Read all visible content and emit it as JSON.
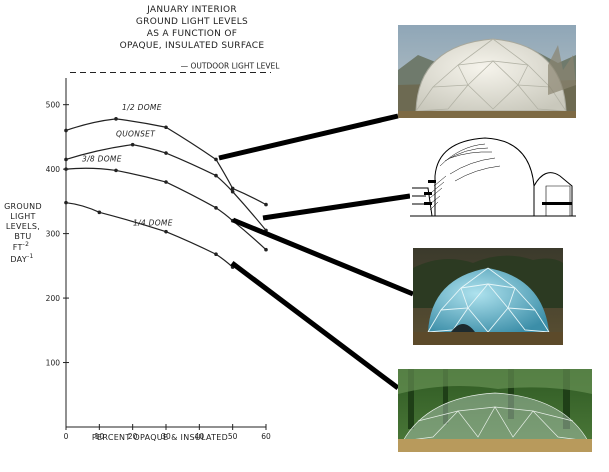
{
  "chart_data": {
    "type": "line",
    "title_lines": [
      "JANUARY INTERIOR",
      "GROUND LIGHT LEVELS",
      "AS A FUNCTION OF",
      "OPAQUE, INSULATED SURFACE"
    ],
    "xlabel": "PERCENT OPAQUE & INSULATED",
    "ylabel_lines": [
      "GROUND",
      "LIGHT",
      "LEVELS,",
      "BTU",
      "FT",
      "DAY"
    ],
    "ylabel_exponents": [
      "-2",
      "-1"
    ],
    "xlim": [
      0,
      60
    ],
    "ylim": [
      0,
      560
    ],
    "xticks": [
      0,
      10,
      20,
      30,
      40,
      50,
      60
    ],
    "yticks": [
      100,
      200,
      300,
      400,
      500
    ],
    "reference_line": {
      "label": "OUTDOOR LIGHT LEVEL",
      "value": 550
    },
    "series": [
      {
        "name": "1/2 DOME",
        "x": [
          0,
          15,
          30,
          45,
          50,
          60
        ],
        "y": [
          460,
          478,
          465,
          415,
          370,
          345
        ]
      },
      {
        "name": "QUONSET",
        "x": [
          0,
          20,
          30,
          45,
          50,
          60
        ],
        "y": [
          415,
          438,
          425,
          390,
          365,
          305
        ]
      },
      {
        "name": "3/8 DOME",
        "x": [
          0,
          15,
          30,
          45,
          50,
          60
        ],
        "y": [
          400,
          398,
          380,
          340,
          320,
          275
        ]
      },
      {
        "name": "1/4 DOME",
        "x": [
          0,
          10,
          30,
          45,
          50
        ],
        "y": [
          348,
          333,
          303,
          268,
          248
        ]
      }
    ]
  }
}
